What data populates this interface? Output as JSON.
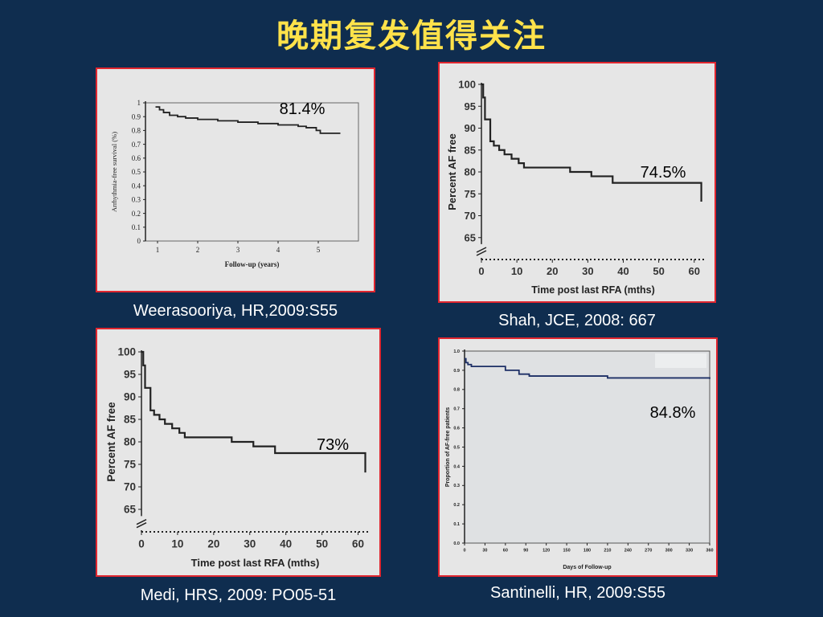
{
  "slide": {
    "title": "晚期复发值得关注",
    "colors": {
      "background": "#0f2d4f",
      "title": "#ffe24a",
      "panel_border": "#e0262f",
      "panel_bg": "#e6e6e6"
    }
  },
  "captions": {
    "weerasooriya": "Weerasooriya, HR,2009:S55",
    "shah": "Shah, JCE, 2008: 667",
    "medi": "Medi, HRS, 2009: PO05-51",
    "santinelli": "Santinelli, HR, 2009:S55"
  },
  "chart_data": [
    {
      "id": "weerasooriya",
      "type": "line",
      "title": "",
      "xlabel": "Follow-up (years)",
      "ylabel": "Arrhythmia-free survival (%)",
      "xlim": [
        0.7,
        6.0
      ],
      "ylim": [
        0,
        1
      ],
      "x_ticks": [
        "1",
        "2",
        "3",
        "4",
        "5"
      ],
      "y_ticks": [
        "0",
        "0.1",
        "0.2",
        "0.3",
        "0.4",
        "0.5",
        "0.6",
        "0.7",
        "0.8",
        "0.9",
        "1"
      ],
      "annotation": "81.4%",
      "step": true,
      "x": [
        0.95,
        1.05,
        1.15,
        1.3,
        1.5,
        1.7,
        2.0,
        2.5,
        3.0,
        3.5,
        4.0,
        4.5,
        4.7,
        4.95,
        5.05,
        5.55
      ],
      "y": [
        0.97,
        0.95,
        0.93,
        0.91,
        0.9,
        0.89,
        0.88,
        0.87,
        0.86,
        0.85,
        0.84,
        0.83,
        0.82,
        0.8,
        0.78,
        0.78
      ]
    },
    {
      "id": "shah",
      "type": "line",
      "title": "",
      "xlabel": "Time post last RFA (mths)",
      "ylabel": "Percent AF free",
      "xlim": [
        0,
        63
      ],
      "ylim": [
        60,
        100
      ],
      "x_ticks": [
        "0",
        "10",
        "20",
        "30",
        "40",
        "50",
        "60"
      ],
      "y_ticks": [
        "65",
        "70",
        "75",
        "80",
        "85",
        "90",
        "95",
        "100"
      ],
      "annotation": "74.5%",
      "step": true,
      "x": [
        0,
        0.5,
        1,
        2.5,
        3.5,
        5,
        6.5,
        8.5,
        10.5,
        12,
        25,
        31,
        37,
        62
      ],
      "y": [
        100,
        97,
        92,
        87,
        86,
        85,
        84,
        83,
        82,
        81,
        80,
        79,
        77.5,
        73.2
      ]
    },
    {
      "id": "medi",
      "type": "line",
      "title": "",
      "xlabel": "Time post last RFA (mths)",
      "ylabel": "Percent AF free",
      "xlim": [
        0,
        63
      ],
      "ylim": [
        60,
        100
      ],
      "x_ticks": [
        "0",
        "10",
        "20",
        "30",
        "40",
        "50",
        "60"
      ],
      "y_ticks": [
        "65",
        "70",
        "75",
        "80",
        "85",
        "90",
        "95",
        "100"
      ],
      "annotation": "73%",
      "step": true,
      "x": [
        0,
        0.5,
        1,
        2.5,
        3.5,
        5,
        6.5,
        8.5,
        10.5,
        12,
        25,
        31,
        37,
        62
      ],
      "y": [
        100,
        97,
        92,
        87,
        86,
        85,
        84,
        83,
        82,
        81,
        80,
        79,
        77.5,
        73.2
      ]
    },
    {
      "id": "santinelli",
      "type": "line",
      "title": "",
      "xlabel": "Days of Follow-up",
      "ylabel": "Proportion of AF-free patients",
      "xlim": [
        0,
        360
      ],
      "ylim": [
        0,
        1
      ],
      "x_ticks": [
        "0",
        "30",
        "60",
        "90",
        "120",
        "150",
        "180",
        "210",
        "240",
        "270",
        "300",
        "330",
        "360"
      ],
      "y_ticks": [
        "0.0",
        "0.1",
        "0.2",
        "0.3",
        "0.4",
        "0.5",
        "0.6",
        "0.7",
        "0.8",
        "0.9",
        "1.0"
      ],
      "annotation": "84.8%",
      "step": true,
      "x": [
        0,
        2,
        5,
        10,
        60,
        80,
        95,
        210,
        360
      ],
      "y": [
        0.96,
        0.94,
        0.93,
        0.92,
        0.9,
        0.88,
        0.87,
        0.86,
        0.855
      ]
    }
  ]
}
